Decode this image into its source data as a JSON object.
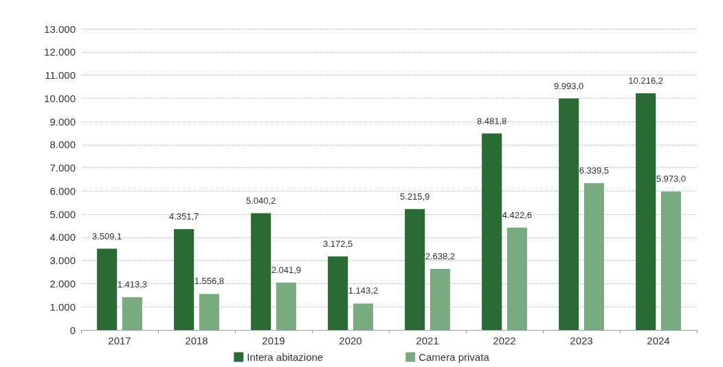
{
  "chart_data": {
    "type": "bar",
    "categories": [
      "2017",
      "2018",
      "2019",
      "2020",
      "2021",
      "2022",
      "2023",
      "2024"
    ],
    "series": [
      {
        "name": "Intera abitazione",
        "color": "#2a6a35",
        "values": [
          3509.1,
          4351.7,
          5040.2,
          3172.5,
          5215.9,
          8481.8,
          9993.0,
          10216.2
        ],
        "value_labels": [
          "3.509,1",
          "4.351,7",
          "5.040,2",
          "3.172,5",
          "5.215,9",
          "8.481,8",
          "9.993,0",
          "10.216,2"
        ]
      },
      {
        "name": "Camera privata",
        "color": "#78ab80",
        "values": [
          1413.3,
          1556.8,
          2041.9,
          1143.2,
          2638.2,
          4422.6,
          6339.5,
          5973.0
        ],
        "value_labels": [
          "1.413,3",
          "1.556,8",
          "2.041,9",
          "1.143,2",
          "2.638,2",
          "4.422,6",
          "6.339,5",
          "5.973,0"
        ]
      }
    ],
    "ylim": [
      0,
      13000
    ],
    "yticks": [
      {
        "value": 0,
        "label": "0"
      },
      {
        "value": 1000,
        "label": "1.000"
      },
      {
        "value": 2000,
        "label": "2.000"
      },
      {
        "value": 3000,
        "label": "3.000"
      },
      {
        "value": 4000,
        "label": "4.000"
      },
      {
        "value": 5000,
        "label": "5.000"
      },
      {
        "value": 6000,
        "label": "6.000"
      },
      {
        "value": 7000,
        "label": "7.000"
      },
      {
        "value": 8000,
        "label": "8.000"
      },
      {
        "value": 9000,
        "label": "9.000"
      },
      {
        "value": 10000,
        "label": "10.000"
      },
      {
        "value": 11000,
        "label": "11.000"
      },
      {
        "value": 12000,
        "label": "12.000"
      },
      {
        "value": 13000,
        "label": "13.000"
      }
    ],
    "grid": "y",
    "legend": "bottom"
  }
}
